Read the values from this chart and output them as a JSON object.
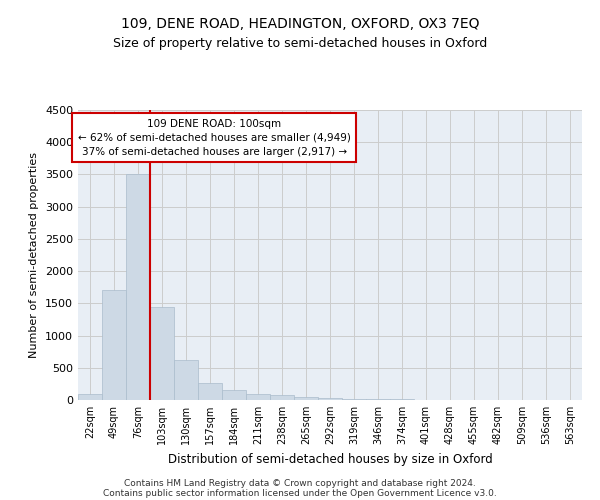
{
  "title": "109, DENE ROAD, HEADINGTON, OXFORD, OX3 7EQ",
  "subtitle": "Size of property relative to semi-detached houses in Oxford",
  "xlabel": "Distribution of semi-detached houses by size in Oxford",
  "ylabel": "Number of semi-detached properties",
  "bin_labels": [
    "22sqm",
    "49sqm",
    "76sqm",
    "103sqm",
    "130sqm",
    "157sqm",
    "184sqm",
    "211sqm",
    "238sqm",
    "265sqm",
    "292sqm",
    "319sqm",
    "346sqm",
    "374sqm",
    "401sqm",
    "428sqm",
    "455sqm",
    "482sqm",
    "509sqm",
    "536sqm",
    "563sqm"
  ],
  "bar_values": [
    100,
    1700,
    3500,
    1450,
    620,
    270,
    150,
    100,
    75,
    50,
    35,
    20,
    12,
    8,
    5,
    4,
    3,
    2,
    1.5,
    1,
    1
  ],
  "bar_color": "#cdd9e5",
  "bar_edgecolor": "#aabccc",
  "vline_color": "#cc0000",
  "annotation_text": "109 DENE ROAD: 100sqm\n← 62% of semi-detached houses are smaller (4,949)\n37% of semi-detached houses are larger (2,917) →",
  "annotation_box_color": "#ffffff",
  "annotation_box_edgecolor": "#cc0000",
  "ylim": [
    0,
    4500
  ],
  "yticks": [
    0,
    500,
    1000,
    1500,
    2000,
    2500,
    3000,
    3500,
    4000,
    4500
  ],
  "grid_color": "#cccccc",
  "bg_color": "#e8eef5",
  "footnote1": "Contains HM Land Registry data © Crown copyright and database right 2024.",
  "footnote2": "Contains public sector information licensed under the Open Government Licence v3.0."
}
